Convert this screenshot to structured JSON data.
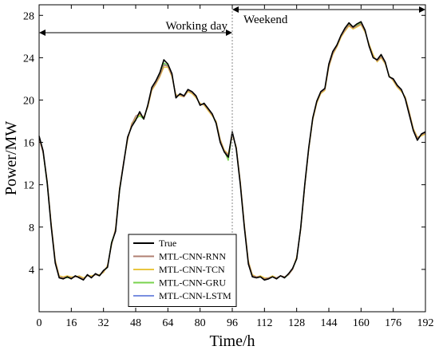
{
  "chart_data": {
    "type": "line",
    "title": "",
    "xlabel": "Time/h",
    "ylabel": "Power/MW",
    "xlim": [
      0,
      192
    ],
    "ylim": [
      0,
      29
    ],
    "xticks": [
      0,
      16,
      32,
      48,
      64,
      80,
      96,
      112,
      128,
      144,
      160,
      176,
      192
    ],
    "yticks": [
      4,
      8,
      12,
      16,
      20,
      24,
      28
    ],
    "grid": false,
    "legend_position": "bottom-center",
    "annotations": [
      {
        "text": "Working day",
        "from_x": 0,
        "to_x": 96
      },
      {
        "text": "Weekend",
        "from_x": 96,
        "to_x": 192
      }
    ],
    "divider_x": 96,
    "series": [
      {
        "name": "True",
        "color": "#000000",
        "x": [
          0,
          2,
          4,
          6,
          8,
          10,
          12,
          14,
          16,
          18,
          20,
          22,
          24,
          26,
          28,
          30,
          32,
          34,
          36,
          38,
          40,
          42,
          44,
          46,
          48,
          50,
          52,
          54,
          56,
          58,
          60,
          62,
          64,
          66,
          68,
          70,
          72,
          74,
          76,
          78,
          80,
          82,
          84,
          86,
          88,
          90,
          92,
          94,
          96,
          98,
          100,
          102,
          104,
          106,
          108,
          110,
          112,
          114,
          116,
          118,
          120,
          122,
          124,
          126,
          128,
          130,
          132,
          134,
          136,
          138,
          140,
          142,
          144,
          146,
          148,
          150,
          152,
          154,
          156,
          158,
          160,
          162,
          164,
          166,
          168,
          170,
          172,
          174,
          176,
          178,
          180,
          182,
          184,
          186,
          188,
          190,
          192
        ],
        "values": [
          16.6,
          15.2,
          12.2,
          8.1,
          4.6,
          3.2,
          3.1,
          3.3,
          3.1,
          3.4,
          3.2,
          3.0,
          3.5,
          3.2,
          3.6,
          3.4,
          3.9,
          4.2,
          6.5,
          7.6,
          11.5,
          14.0,
          16.5,
          17.5,
          18.1,
          18.9,
          18.2,
          19.5,
          21.2,
          21.8,
          22.6,
          23.8,
          23.4,
          22.5,
          20.2,
          20.6,
          20.4,
          21.0,
          20.8,
          20.4,
          19.5,
          19.7,
          19.2,
          18.7,
          17.8,
          16.0,
          15.1,
          14.6,
          17.0,
          15.4,
          12.0,
          8.0,
          4.5,
          3.3,
          3.2,
          3.3,
          3.0,
          3.1,
          3.3,
          3.1,
          3.4,
          3.2,
          3.6,
          4.1,
          5.0,
          7.9,
          12.0,
          15.5,
          18.3,
          19.9,
          20.8,
          21.1,
          23.4,
          24.6,
          25.2,
          26.1,
          26.8,
          27.3,
          26.9,
          27.2,
          27.4,
          26.6,
          25.1,
          24.0,
          23.8,
          24.3,
          23.6,
          22.2,
          22.0,
          21.4,
          21.0,
          20.1,
          18.6,
          17.1,
          16.2,
          16.8,
          17.0
        ]
      },
      {
        "name": "MTL-CNN-RNN",
        "color": "#b07f72",
        "x": [
          0,
          2,
          4,
          6,
          8,
          10,
          12,
          14,
          16,
          18,
          20,
          22,
          24,
          26,
          28,
          30,
          32,
          34,
          36,
          38,
          40,
          42,
          44,
          46,
          48,
          50,
          52,
          54,
          56,
          58,
          60,
          62,
          64,
          66,
          68,
          70,
          72,
          74,
          76,
          78,
          80,
          82,
          84,
          86,
          88,
          90,
          92,
          94,
          96,
          98,
          100,
          102,
          104,
          106,
          108,
          110,
          112,
          114,
          116,
          118,
          120,
          122,
          124,
          126,
          128,
          130,
          132,
          134,
          136,
          138,
          140,
          142,
          144,
          146,
          148,
          150,
          152,
          154,
          156,
          158,
          160,
          162,
          164,
          166,
          168,
          170,
          172,
          174,
          176,
          178,
          180,
          182,
          184,
          186,
          188,
          190,
          192
        ],
        "values": [
          16.4,
          15.0,
          12.3,
          8.3,
          4.8,
          3.3,
          3.2,
          3.3,
          3.2,
          3.3,
          3.3,
          3.1,
          3.4,
          3.3,
          3.5,
          3.4,
          3.8,
          4.3,
          6.4,
          7.8,
          11.6,
          14.2,
          16.3,
          17.7,
          18.5,
          18.7,
          18.3,
          19.4,
          21.0,
          21.6,
          22.3,
          23.3,
          23.2,
          22.3,
          20.4,
          20.5,
          20.3,
          20.9,
          20.7,
          20.3,
          19.6,
          19.6,
          19.1,
          18.6,
          17.9,
          16.2,
          15.2,
          14.8,
          16.8,
          15.5,
          12.2,
          8.2,
          4.7,
          3.4,
          3.3,
          3.3,
          3.1,
          3.2,
          3.3,
          3.2,
          3.4,
          3.3,
          3.5,
          4.0,
          5.1,
          7.8,
          11.9,
          15.4,
          18.2,
          19.8,
          20.7,
          21.0,
          23.2,
          24.4,
          25.1,
          26.0,
          26.6,
          27.1,
          26.8,
          27.0,
          27.2,
          26.5,
          25.2,
          24.1,
          23.7,
          24.1,
          23.5,
          22.2,
          21.9,
          21.3,
          20.9,
          20.2,
          18.8,
          17.2,
          16.4,
          16.7,
          16.9
        ]
      },
      {
        "name": "MTL-CNN-TCN",
        "color": "#e9c640",
        "x": [
          0,
          2,
          4,
          6,
          8,
          10,
          12,
          14,
          16,
          18,
          20,
          22,
          24,
          26,
          28,
          30,
          32,
          34,
          36,
          38,
          40,
          42,
          44,
          46,
          48,
          50,
          52,
          54,
          56,
          58,
          60,
          62,
          64,
          66,
          68,
          70,
          72,
          74,
          76,
          78,
          80,
          82,
          84,
          86,
          88,
          90,
          92,
          94,
          96,
          98,
          100,
          102,
          104,
          106,
          108,
          110,
          112,
          114,
          116,
          118,
          120,
          122,
          124,
          126,
          128,
          130,
          132,
          134,
          136,
          138,
          140,
          142,
          144,
          146,
          148,
          150,
          152,
          154,
          156,
          158,
          160,
          162,
          164,
          166,
          168,
          170,
          172,
          174,
          176,
          178,
          180,
          182,
          184,
          186,
          188,
          190,
          192
        ],
        "values": [
          16.3,
          15.1,
          12.4,
          8.4,
          4.9,
          3.4,
          3.3,
          3.4,
          3.3,
          3.3,
          3.4,
          3.2,
          3.4,
          3.4,
          3.5,
          3.5,
          3.7,
          4.4,
          6.3,
          7.9,
          11.7,
          14.1,
          16.2,
          17.8,
          18.3,
          18.6,
          18.4,
          19.3,
          20.9,
          21.5,
          22.2,
          23.1,
          23.1,
          22.2,
          20.5,
          20.4,
          20.3,
          20.8,
          20.6,
          20.2,
          19.7,
          19.5,
          19.0,
          18.5,
          18.0,
          16.3,
          15.3,
          14.9,
          16.7,
          15.6,
          12.3,
          8.3,
          4.8,
          3.5,
          3.3,
          3.4,
          3.2,
          3.2,
          3.4,
          3.2,
          3.4,
          3.3,
          3.5,
          4.0,
          5.2,
          7.7,
          11.8,
          15.3,
          18.1,
          19.7,
          20.6,
          20.9,
          23.1,
          24.3,
          25.0,
          25.9,
          26.5,
          27.0,
          26.7,
          26.9,
          27.1,
          26.4,
          25.3,
          24.3,
          23.6,
          24.0,
          23.4,
          22.3,
          21.8,
          21.2,
          20.8,
          20.3,
          18.9,
          17.3,
          16.5,
          16.6,
          16.8
        ]
      },
      {
        "name": "MTL-CNN-GRU",
        "color": "#79d34e",
        "x": [
          0,
          2,
          4,
          6,
          8,
          10,
          12,
          14,
          16,
          18,
          20,
          22,
          24,
          26,
          28,
          30,
          32,
          34,
          36,
          38,
          40,
          42,
          44,
          46,
          48,
          50,
          52,
          54,
          56,
          58,
          60,
          62,
          64,
          66,
          68,
          70,
          72,
          74,
          76,
          78,
          80,
          82,
          84,
          86,
          88,
          90,
          92,
          94,
          96,
          98,
          100,
          102,
          104,
          106,
          108,
          110,
          112,
          114,
          116,
          118,
          120,
          122,
          124,
          126,
          128,
          130,
          132,
          134,
          136,
          138,
          140,
          142,
          144,
          146,
          148,
          150,
          152,
          154,
          156,
          158,
          160,
          162,
          164,
          166,
          168,
          170,
          172,
          174,
          176,
          178,
          180,
          182,
          184,
          186,
          188,
          190,
          192
        ],
        "values": [
          16.5,
          15.0,
          12.1,
          8.2,
          4.7,
          3.3,
          3.2,
          3.2,
          3.2,
          3.3,
          3.3,
          3.1,
          3.4,
          3.3,
          3.5,
          3.4,
          3.8,
          4.2,
          6.6,
          7.7,
          11.4,
          14.1,
          16.4,
          17.6,
          18.2,
          18.5,
          18.2,
          19.4,
          21.1,
          21.7,
          22.4,
          23.5,
          23.3,
          22.4,
          20.3,
          20.5,
          20.4,
          20.9,
          20.7,
          20.3,
          19.6,
          19.6,
          19.1,
          18.6,
          17.8,
          16.1,
          15.2,
          14.3,
          16.9,
          15.4,
          12.1,
          8.1,
          4.6,
          3.4,
          3.2,
          3.3,
          3.1,
          3.2,
          3.3,
          3.1,
          3.4,
          3.2,
          3.5,
          4.0,
          5.0,
          7.9,
          12.0,
          15.4,
          18.2,
          19.8,
          20.7,
          21.0,
          23.3,
          24.5,
          25.2,
          26.0,
          26.7,
          27.2,
          26.8,
          27.1,
          27.3,
          26.5,
          25.2,
          24.1,
          23.7,
          24.2,
          23.5,
          22.2,
          21.9,
          21.3,
          20.9,
          20.2,
          18.7,
          17.2,
          16.3,
          16.7,
          16.9
        ]
      },
      {
        "name": "MTL-CNN-LSTM",
        "color": "#7a8fe0",
        "x": [
          0,
          2,
          4,
          6,
          8,
          10,
          12,
          14,
          16,
          18,
          20,
          22,
          24,
          26,
          28,
          30,
          32,
          34,
          36,
          38,
          40,
          42,
          44,
          46,
          48,
          50,
          52,
          54,
          56,
          58,
          60,
          62,
          64,
          66,
          68,
          70,
          72,
          74,
          76,
          78,
          80,
          82,
          84,
          86,
          88,
          90,
          92,
          94,
          96,
          98,
          100,
          102,
          104,
          106,
          108,
          110,
          112,
          114,
          116,
          118,
          120,
          122,
          124,
          126,
          128,
          130,
          132,
          134,
          136,
          138,
          140,
          142,
          144,
          146,
          148,
          150,
          152,
          154,
          156,
          158,
          160,
          162,
          164,
          166,
          168,
          170,
          172,
          174,
          176,
          178,
          180,
          182,
          184,
          186,
          188,
          190,
          192
        ],
        "values": [
          16.5,
          15.1,
          12.2,
          8.2,
          4.7,
          3.3,
          3.2,
          3.3,
          3.2,
          3.3,
          3.3,
          3.1,
          3.4,
          3.3,
          3.5,
          3.4,
          3.8,
          4.3,
          6.5,
          7.7,
          11.5,
          14.1,
          16.4,
          17.6,
          18.2,
          18.6,
          18.3,
          19.4,
          21.1,
          21.7,
          22.4,
          23.4,
          23.3,
          22.4,
          20.3,
          20.5,
          20.4,
          20.9,
          20.7,
          20.3,
          19.6,
          19.6,
          19.1,
          18.6,
          17.9,
          16.1,
          15.2,
          14.7,
          16.9,
          15.5,
          12.1,
          8.1,
          4.6,
          3.4,
          3.3,
          3.3,
          3.1,
          3.2,
          3.3,
          3.2,
          3.4,
          3.3,
          3.5,
          4.0,
          5.1,
          7.8,
          11.9,
          15.4,
          18.2,
          19.8,
          20.7,
          21.0,
          23.3,
          24.5,
          25.1,
          26.0,
          26.7,
          27.2,
          26.8,
          27.1,
          27.3,
          26.5,
          25.2,
          24.1,
          23.7,
          24.2,
          23.5,
          22.2,
          21.9,
          21.3,
          20.9,
          20.2,
          18.8,
          17.2,
          16.4,
          16.7,
          16.9
        ]
      }
    ]
  }
}
